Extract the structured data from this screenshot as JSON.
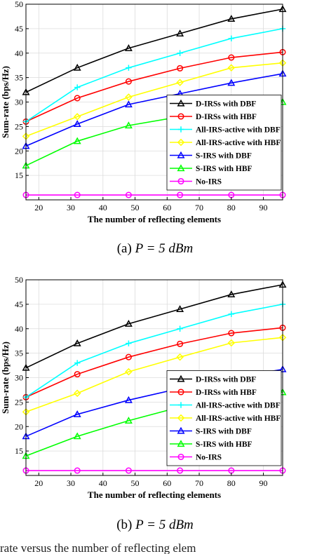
{
  "chart_data": [
    {
      "type": "line",
      "title": "",
      "xlabel": "The number of reflecting elements",
      "ylabel": "Sum-rate (bps/Hz)",
      "xlim": [
        16,
        96
      ],
      "ylim": [
        10,
        50
      ],
      "xticks": [
        20,
        30,
        40,
        50,
        60,
        70,
        80,
        90
      ],
      "yticks": [
        15,
        20,
        25,
        30,
        35,
        40,
        45,
        50
      ],
      "grid": true,
      "legend_position": "bottom-right",
      "x": [
        16,
        32,
        48,
        64,
        80,
        96
      ],
      "series": [
        {
          "name": "D-IRSs with DBF",
          "color": "#000000",
          "marker": "triangle",
          "values": [
            32,
            37,
            41,
            44,
            47,
            49
          ]
        },
        {
          "name": "D-IRSs with HBF",
          "color": "#ff0000",
          "marker": "circle",
          "values": [
            26,
            30.8,
            34.2,
            36.9,
            39.1,
            40.2
          ]
        },
        {
          "name": "All-IRS-active with DBF",
          "color": "#00ffff",
          "marker": "plus",
          "values": [
            26,
            33,
            37,
            40,
            43,
            45
          ]
        },
        {
          "name": "All-IRS-active with HBF",
          "color": "#ffff00",
          "marker": "diamond",
          "values": [
            23,
            27,
            31,
            34,
            37,
            38
          ]
        },
        {
          "name": "S-IRS with DBF",
          "color": "#0000ff",
          "marker": "triangle",
          "values": [
            21,
            25.5,
            29.5,
            31.7,
            33.9,
            35.8
          ]
        },
        {
          "name": "S-IRS with HBF",
          "color": "#00ff00",
          "marker": "triangle",
          "values": [
            17,
            22,
            25.2,
            27,
            29,
            30
          ]
        },
        {
          "name": "No-IRS",
          "color": "#ff00ff",
          "marker": "circle",
          "values": [
            11,
            11,
            11,
            11,
            11,
            11
          ]
        }
      ]
    },
    {
      "type": "line",
      "title": "",
      "xlabel": "The number of reflecting elements",
      "ylabel": "Sum-rate (bps/Hz)",
      "xlim": [
        16,
        96
      ],
      "ylim": [
        10,
        50
      ],
      "xticks": [
        20,
        30,
        40,
        50,
        60,
        70,
        80,
        90
      ],
      "yticks": [
        15,
        20,
        25,
        30,
        35,
        40,
        45,
        50
      ],
      "grid": true,
      "legend_position": "bottom-right",
      "x": [
        16,
        32,
        48,
        64,
        80,
        96
      ],
      "series": [
        {
          "name": "D-IRSs with DBF",
          "color": "#000000",
          "marker": "triangle",
          "values": [
            32,
            37,
            41,
            44,
            47,
            49
          ]
        },
        {
          "name": "D-IRSs with HBF",
          "color": "#ff0000",
          "marker": "circle",
          "values": [
            26,
            30.7,
            34.2,
            36.9,
            39.1,
            40.2
          ]
        },
        {
          "name": "All-IRS-active with DBF",
          "color": "#00ffff",
          "marker": "plus",
          "values": [
            26,
            33,
            37,
            40,
            43,
            45
          ]
        },
        {
          "name": "All-IRS-active with HBF",
          "color": "#ffff00",
          "marker": "diamond",
          "values": [
            23,
            26.8,
            31.2,
            34.2,
            37.1,
            38.2
          ]
        },
        {
          "name": "S-IRS with DBF",
          "color": "#0000ff",
          "marker": "triangle",
          "values": [
            18,
            22.5,
            25.4,
            27.8,
            29.9,
            31.7
          ]
        },
        {
          "name": "S-IRS with HBF",
          "color": "#00ff00",
          "marker": "triangle",
          "values": [
            14,
            18,
            21.2,
            24,
            26,
            27
          ]
        },
        {
          "name": "No-IRS",
          "color": "#ff00ff",
          "marker": "circle",
          "values": [
            11,
            11,
            11,
            11,
            11,
            11
          ]
        }
      ]
    }
  ],
  "captions": {
    "a": {
      "label": "(a)",
      "math": "P = 5 dBm"
    },
    "b": {
      "label": "(b)",
      "math": "P = 5 dBm"
    }
  },
  "bottom_fragment": "rate versus the number of reflecting elem"
}
